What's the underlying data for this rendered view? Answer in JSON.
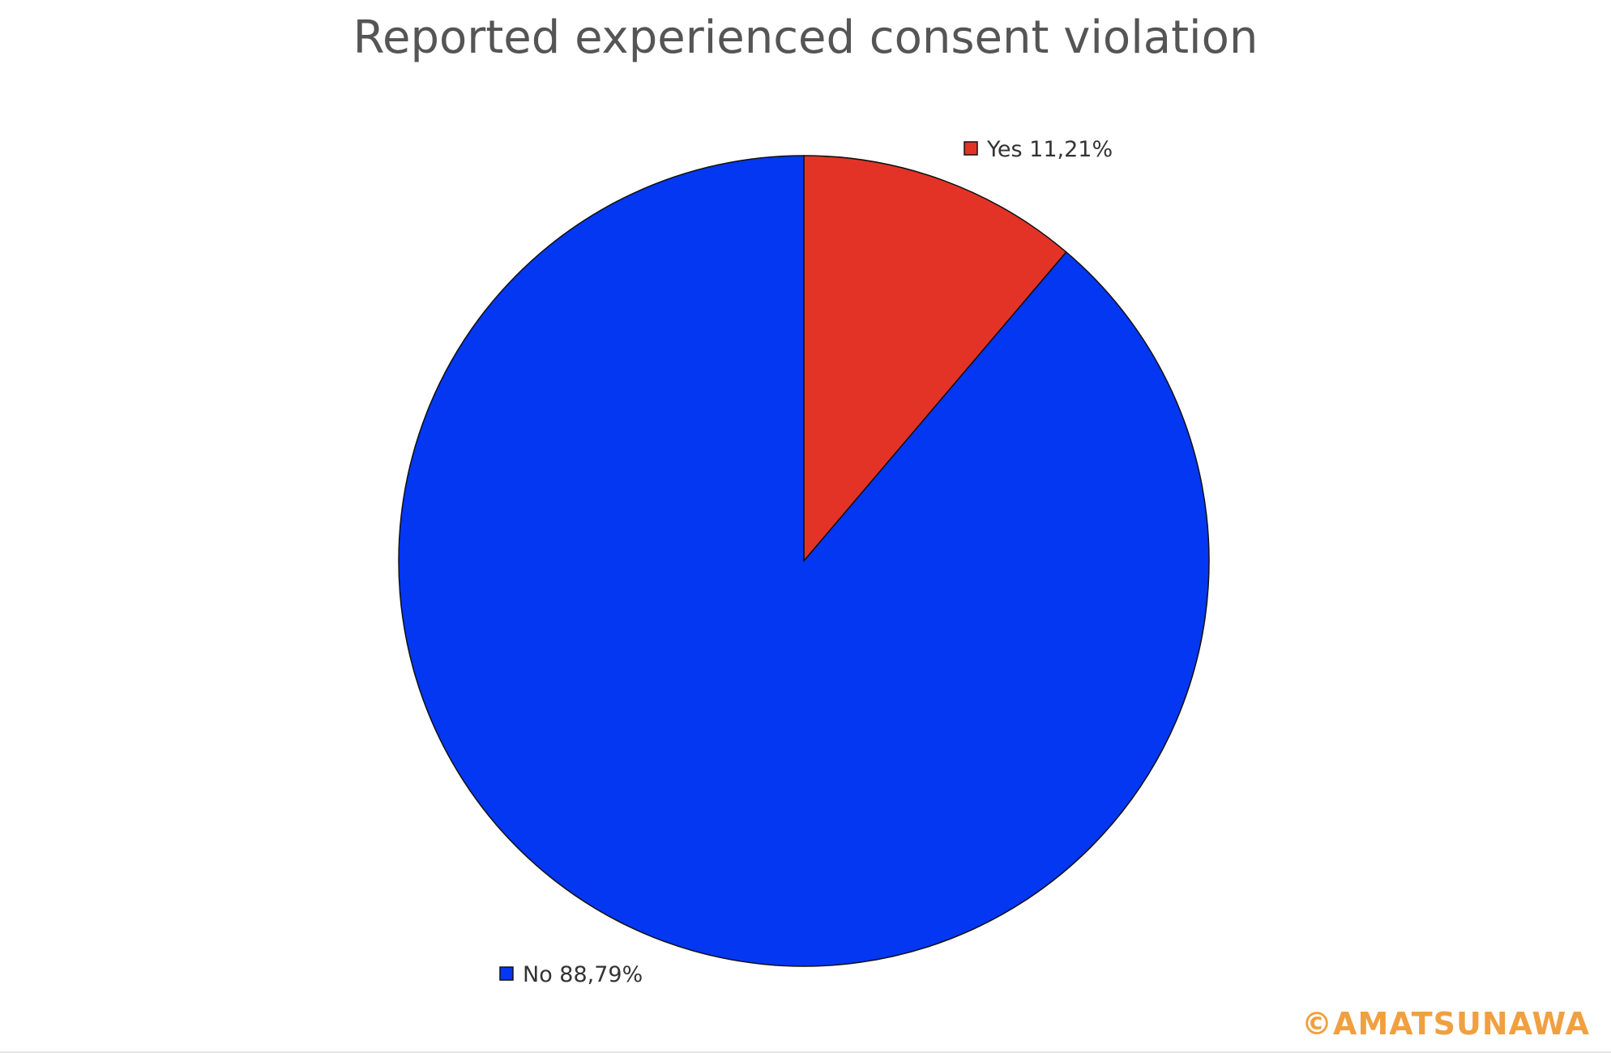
{
  "chart_data": {
    "type": "pie",
    "title": "Reported experienced consent violation",
    "slices": [
      {
        "label": "Yes",
        "value": 11.21,
        "display": "11,21%",
        "color": "#e33327"
      },
      {
        "label": "No",
        "value": 88.79,
        "display": "88,79%",
        "color": "#0437f2"
      }
    ],
    "start_angle": "top",
    "direction": "clockwise",
    "outline_color": "#111111"
  },
  "watermark": "©AMATSUNAWA"
}
